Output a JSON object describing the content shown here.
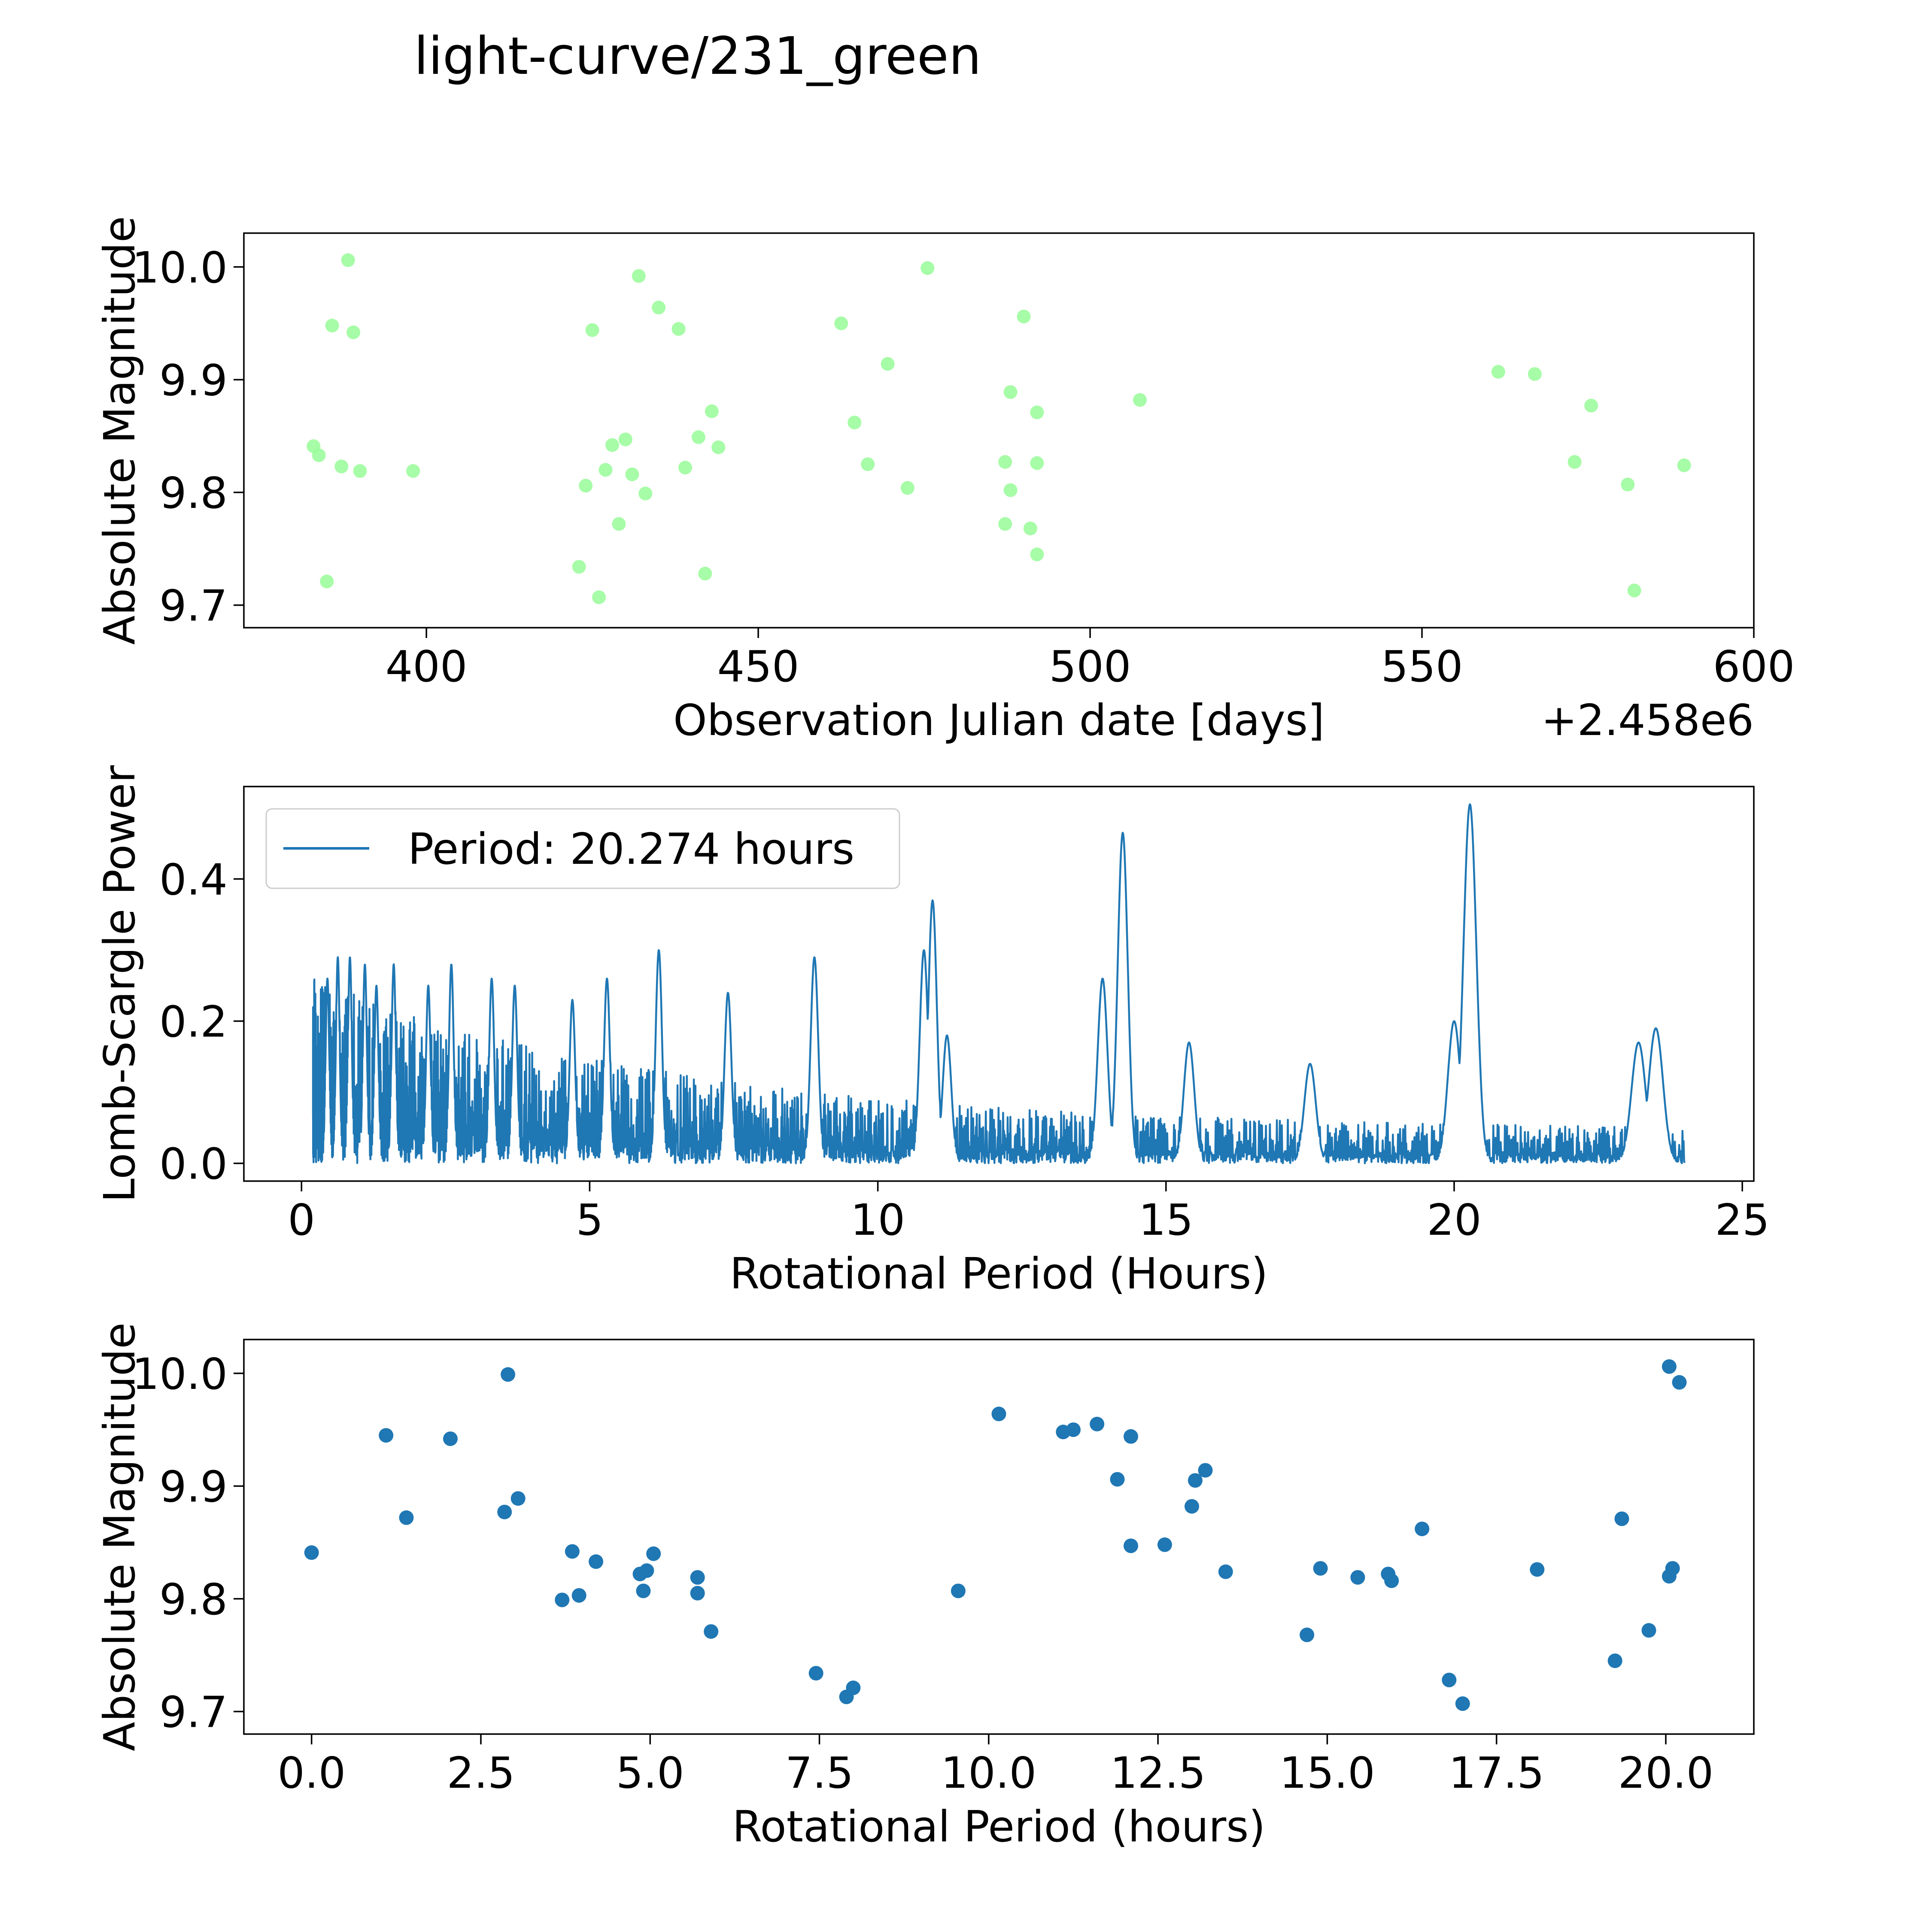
{
  "figure_title": "light-curve/231_green",
  "colors": {
    "green": "#98fb98",
    "blue": "#1f77b4",
    "frame": "#000000"
  },
  "chart_data": [
    {
      "type": "scatter",
      "id": "light_curve",
      "title": "",
      "xlabel": "Observation Julian date [days]",
      "ylabel": "Absolute Magnitude",
      "x_offset_text": "+2.458e6",
      "xlim": [
        372.5,
        600
      ],
      "ylim": [
        9.68,
        10.03
      ],
      "xticks": [
        400,
        450,
        500,
        550,
        600
      ],
      "xtick_labels": [
        "400",
        "450",
        "500",
        "550",
        "600"
      ],
      "yticks": [
        9.7,
        9.8,
        9.9,
        10.0
      ],
      "ytick_labels": [
        "9.7",
        "9.8",
        "9.9",
        "10.0"
      ],
      "color": "#98fb98",
      "points": [
        [
          383.0,
          9.841
        ],
        [
          383.8,
          9.833
        ],
        [
          385.0,
          9.721
        ],
        [
          385.8,
          9.948
        ],
        [
          387.2,
          9.823
        ],
        [
          388.2,
          10.006
        ],
        [
          389.0,
          9.942
        ],
        [
          390.0,
          9.819
        ],
        [
          398.0,
          9.819
        ],
        [
          423.0,
          9.734
        ],
        [
          424.0,
          9.806
        ],
        [
          425.0,
          9.944
        ],
        [
          426.0,
          9.707
        ],
        [
          427.0,
          9.82
        ],
        [
          428.0,
          9.842
        ],
        [
          429.0,
          9.772
        ],
        [
          430.0,
          9.847
        ],
        [
          431.0,
          9.816
        ],
        [
          432.0,
          9.992
        ],
        [
          433.0,
          9.799
        ],
        [
          435.0,
          9.964
        ],
        [
          438.0,
          9.945
        ],
        [
          439.0,
          9.822
        ],
        [
          441.0,
          9.849
        ],
        [
          442.0,
          9.728
        ],
        [
          443.0,
          9.872
        ],
        [
          444.0,
          9.84
        ],
        [
          462.5,
          9.95
        ],
        [
          464.5,
          9.862
        ],
        [
          466.5,
          9.825
        ],
        [
          469.5,
          9.914
        ],
        [
          472.5,
          9.804
        ],
        [
          475.5,
          9.999
        ],
        [
          487.2,
          9.827
        ],
        [
          487.2,
          9.772
        ],
        [
          488.0,
          9.889
        ],
        [
          488.0,
          9.802
        ],
        [
          490.0,
          9.956
        ],
        [
          491.0,
          9.768
        ],
        [
          492.0,
          9.871
        ],
        [
          492.0,
          9.826
        ],
        [
          492.0,
          9.745
        ],
        [
          507.5,
          9.882
        ],
        [
          561.5,
          9.907
        ],
        [
          567.0,
          9.905
        ],
        [
          573.0,
          9.827
        ],
        [
          575.5,
          9.877
        ],
        [
          581.0,
          9.807
        ],
        [
          582.0,
          9.713
        ],
        [
          589.5,
          9.824
        ]
      ]
    },
    {
      "type": "line",
      "id": "periodogram",
      "title": "",
      "xlabel": "Rotational Period (Hours)",
      "ylabel": "Lomb-Scargle Power",
      "xlim": [
        -1.0,
        25.2
      ],
      "ylim": [
        -0.025,
        0.53
      ],
      "xticks": [
        0,
        5,
        10,
        15,
        20,
        25
      ],
      "xtick_labels": [
        "0",
        "5",
        "10",
        "15",
        "20",
        "25"
      ],
      "yticks": [
        0.0,
        0.2,
        0.4
      ],
      "ytick_labels": [
        "0.0",
        "0.2",
        "0.4"
      ],
      "color": "#1f77b4",
      "legend": {
        "label": "Period: 20.274 hours",
        "loc": "upper left"
      },
      "x_range": [
        0.2,
        24.0
      ],
      "peaks": [
        [
          0.45,
          0.26
        ],
        [
          0.63,
          0.29
        ],
        [
          0.84,
          0.29
        ],
        [
          1.1,
          0.28
        ],
        [
          1.3,
          0.25
        ],
        [
          1.6,
          0.28
        ],
        [
          2.2,
          0.25
        ],
        [
          2.6,
          0.28
        ],
        [
          3.3,
          0.26
        ],
        [
          3.7,
          0.25
        ],
        [
          4.7,
          0.23
        ],
        [
          5.3,
          0.26
        ],
        [
          6.2,
          0.3
        ],
        [
          7.4,
          0.24
        ],
        [
          8.9,
          0.29
        ],
        [
          10.8,
          0.3
        ],
        [
          10.95,
          0.37
        ],
        [
          11.2,
          0.18
        ],
        [
          13.9,
          0.26
        ],
        [
          14.25,
          0.465
        ],
        [
          15.4,
          0.17
        ],
        [
          17.5,
          0.14
        ],
        [
          20.274,
          0.505
        ],
        [
          20.0,
          0.2
        ],
        [
          23.2,
          0.17
        ],
        [
          23.5,
          0.19
        ]
      ]
    },
    {
      "type": "scatter",
      "id": "phase_folded",
      "title": "",
      "xlabel": "Rotational Period (hours)",
      "ylabel": "Absolute Magnitude",
      "xlim": [
        -1.0,
        21.3
      ],
      "ylim": [
        9.68,
        10.03
      ],
      "xticks": [
        0.0,
        2.5,
        5.0,
        7.5,
        10.0,
        12.5,
        15.0,
        17.5,
        20.0
      ],
      "xtick_labels": [
        "0.0",
        "2.5",
        "5.0",
        "7.5",
        "10.0",
        "12.5",
        "15.0",
        "17.5",
        "20.0"
      ],
      "yticks": [
        9.7,
        9.8,
        9.9,
        10.0
      ],
      "ytick_labels": [
        "9.7",
        "9.8",
        "9.9",
        "10.0"
      ],
      "color": "#1f77b4",
      "points": [
        [
          0.0,
          9.841
        ],
        [
          1.1,
          9.945
        ],
        [
          1.4,
          9.872
        ],
        [
          2.05,
          9.942
        ],
        [
          2.85,
          9.877
        ],
        [
          2.9,
          9.999
        ],
        [
          3.05,
          9.889
        ],
        [
          3.7,
          9.799
        ],
        [
          3.85,
          9.842
        ],
        [
          3.95,
          9.803
        ],
        [
          4.2,
          9.833
        ],
        [
          4.85,
          9.822
        ],
        [
          4.9,
          9.807
        ],
        [
          4.95,
          9.825
        ],
        [
          5.05,
          9.84
        ],
        [
          5.7,
          9.819
        ],
        [
          5.7,
          9.805
        ],
        [
          5.9,
          9.771
        ],
        [
          7.45,
          9.734
        ],
        [
          7.9,
          9.713
        ],
        [
          8.0,
          9.721
        ],
        [
          9.55,
          9.807
        ],
        [
          10.15,
          9.964
        ],
        [
          11.1,
          9.948
        ],
        [
          11.25,
          9.95
        ],
        [
          11.6,
          9.955
        ],
        [
          11.9,
          9.906
        ],
        [
          12.1,
          9.944
        ],
        [
          12.1,
          9.847
        ],
        [
          12.6,
          9.848
        ],
        [
          13.0,
          9.882
        ],
        [
          13.05,
          9.905
        ],
        [
          13.2,
          9.914
        ],
        [
          13.5,
          9.824
        ],
        [
          14.7,
          9.768
        ],
        [
          14.9,
          9.827
        ],
        [
          15.45,
          9.819
        ],
        [
          15.9,
          9.822
        ],
        [
          15.95,
          9.816
        ],
        [
          16.4,
          9.862
        ],
        [
          16.8,
          9.728
        ],
        [
          17.0,
          9.707
        ],
        [
          18.1,
          9.826
        ],
        [
          19.25,
          9.745
        ],
        [
          19.35,
          9.871
        ],
        [
          19.75,
          9.772
        ],
        [
          20.05,
          9.82
        ],
        [
          20.1,
          9.827
        ],
        [
          20.05,
          10.006
        ],
        [
          20.2,
          9.992
        ]
      ]
    }
  ]
}
